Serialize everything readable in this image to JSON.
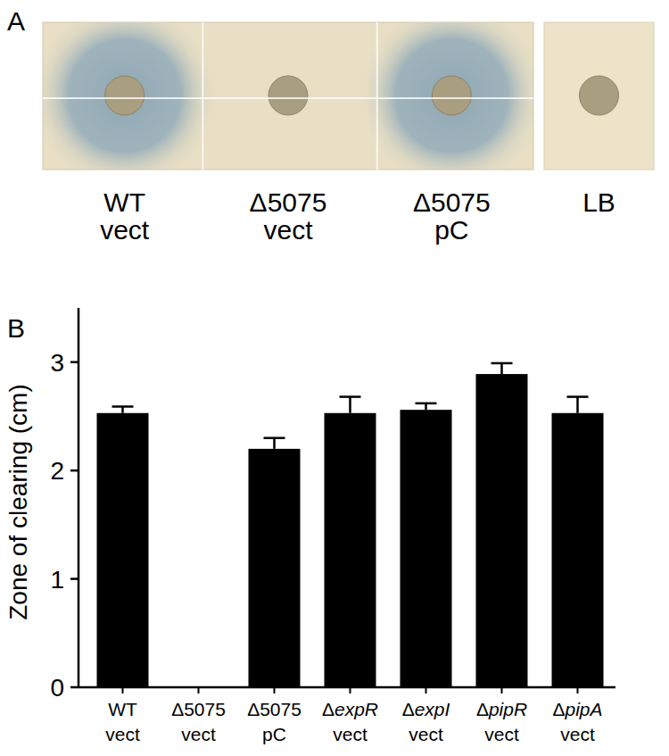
{
  "panels": {
    "a": {
      "label": "A",
      "plates": [
        {
          "label": "WT vect",
          "zone": true
        },
        {
          "label": "Δ5075 vect",
          "zone": false
        },
        {
          "label": "Δ5075 pC",
          "zone": true
        },
        {
          "label": "LB",
          "zone": false
        }
      ]
    },
    "b": {
      "label": "B"
    }
  },
  "chart_data": {
    "type": "bar",
    "y_label": "Zone of clearing (cm)",
    "categories": [
      "WT vect",
      "Δ5075 vect",
      "Δ5075 pC",
      "ΔexpR vect",
      "ΔexpI vect",
      "ΔpipR vect",
      "ΔpipA vect"
    ],
    "values": [
      2.53,
      0,
      2.2,
      2.53,
      2.56,
      2.89,
      2.53
    ],
    "errors": [
      0.06,
      0,
      0.1,
      0.15,
      0.06,
      0.1,
      0.15
    ],
    "color": "#000000",
    "ylim": [
      0,
      3.5
    ],
    "yticks": [
      0,
      1,
      2,
      3
    ],
    "grid": false
  }
}
